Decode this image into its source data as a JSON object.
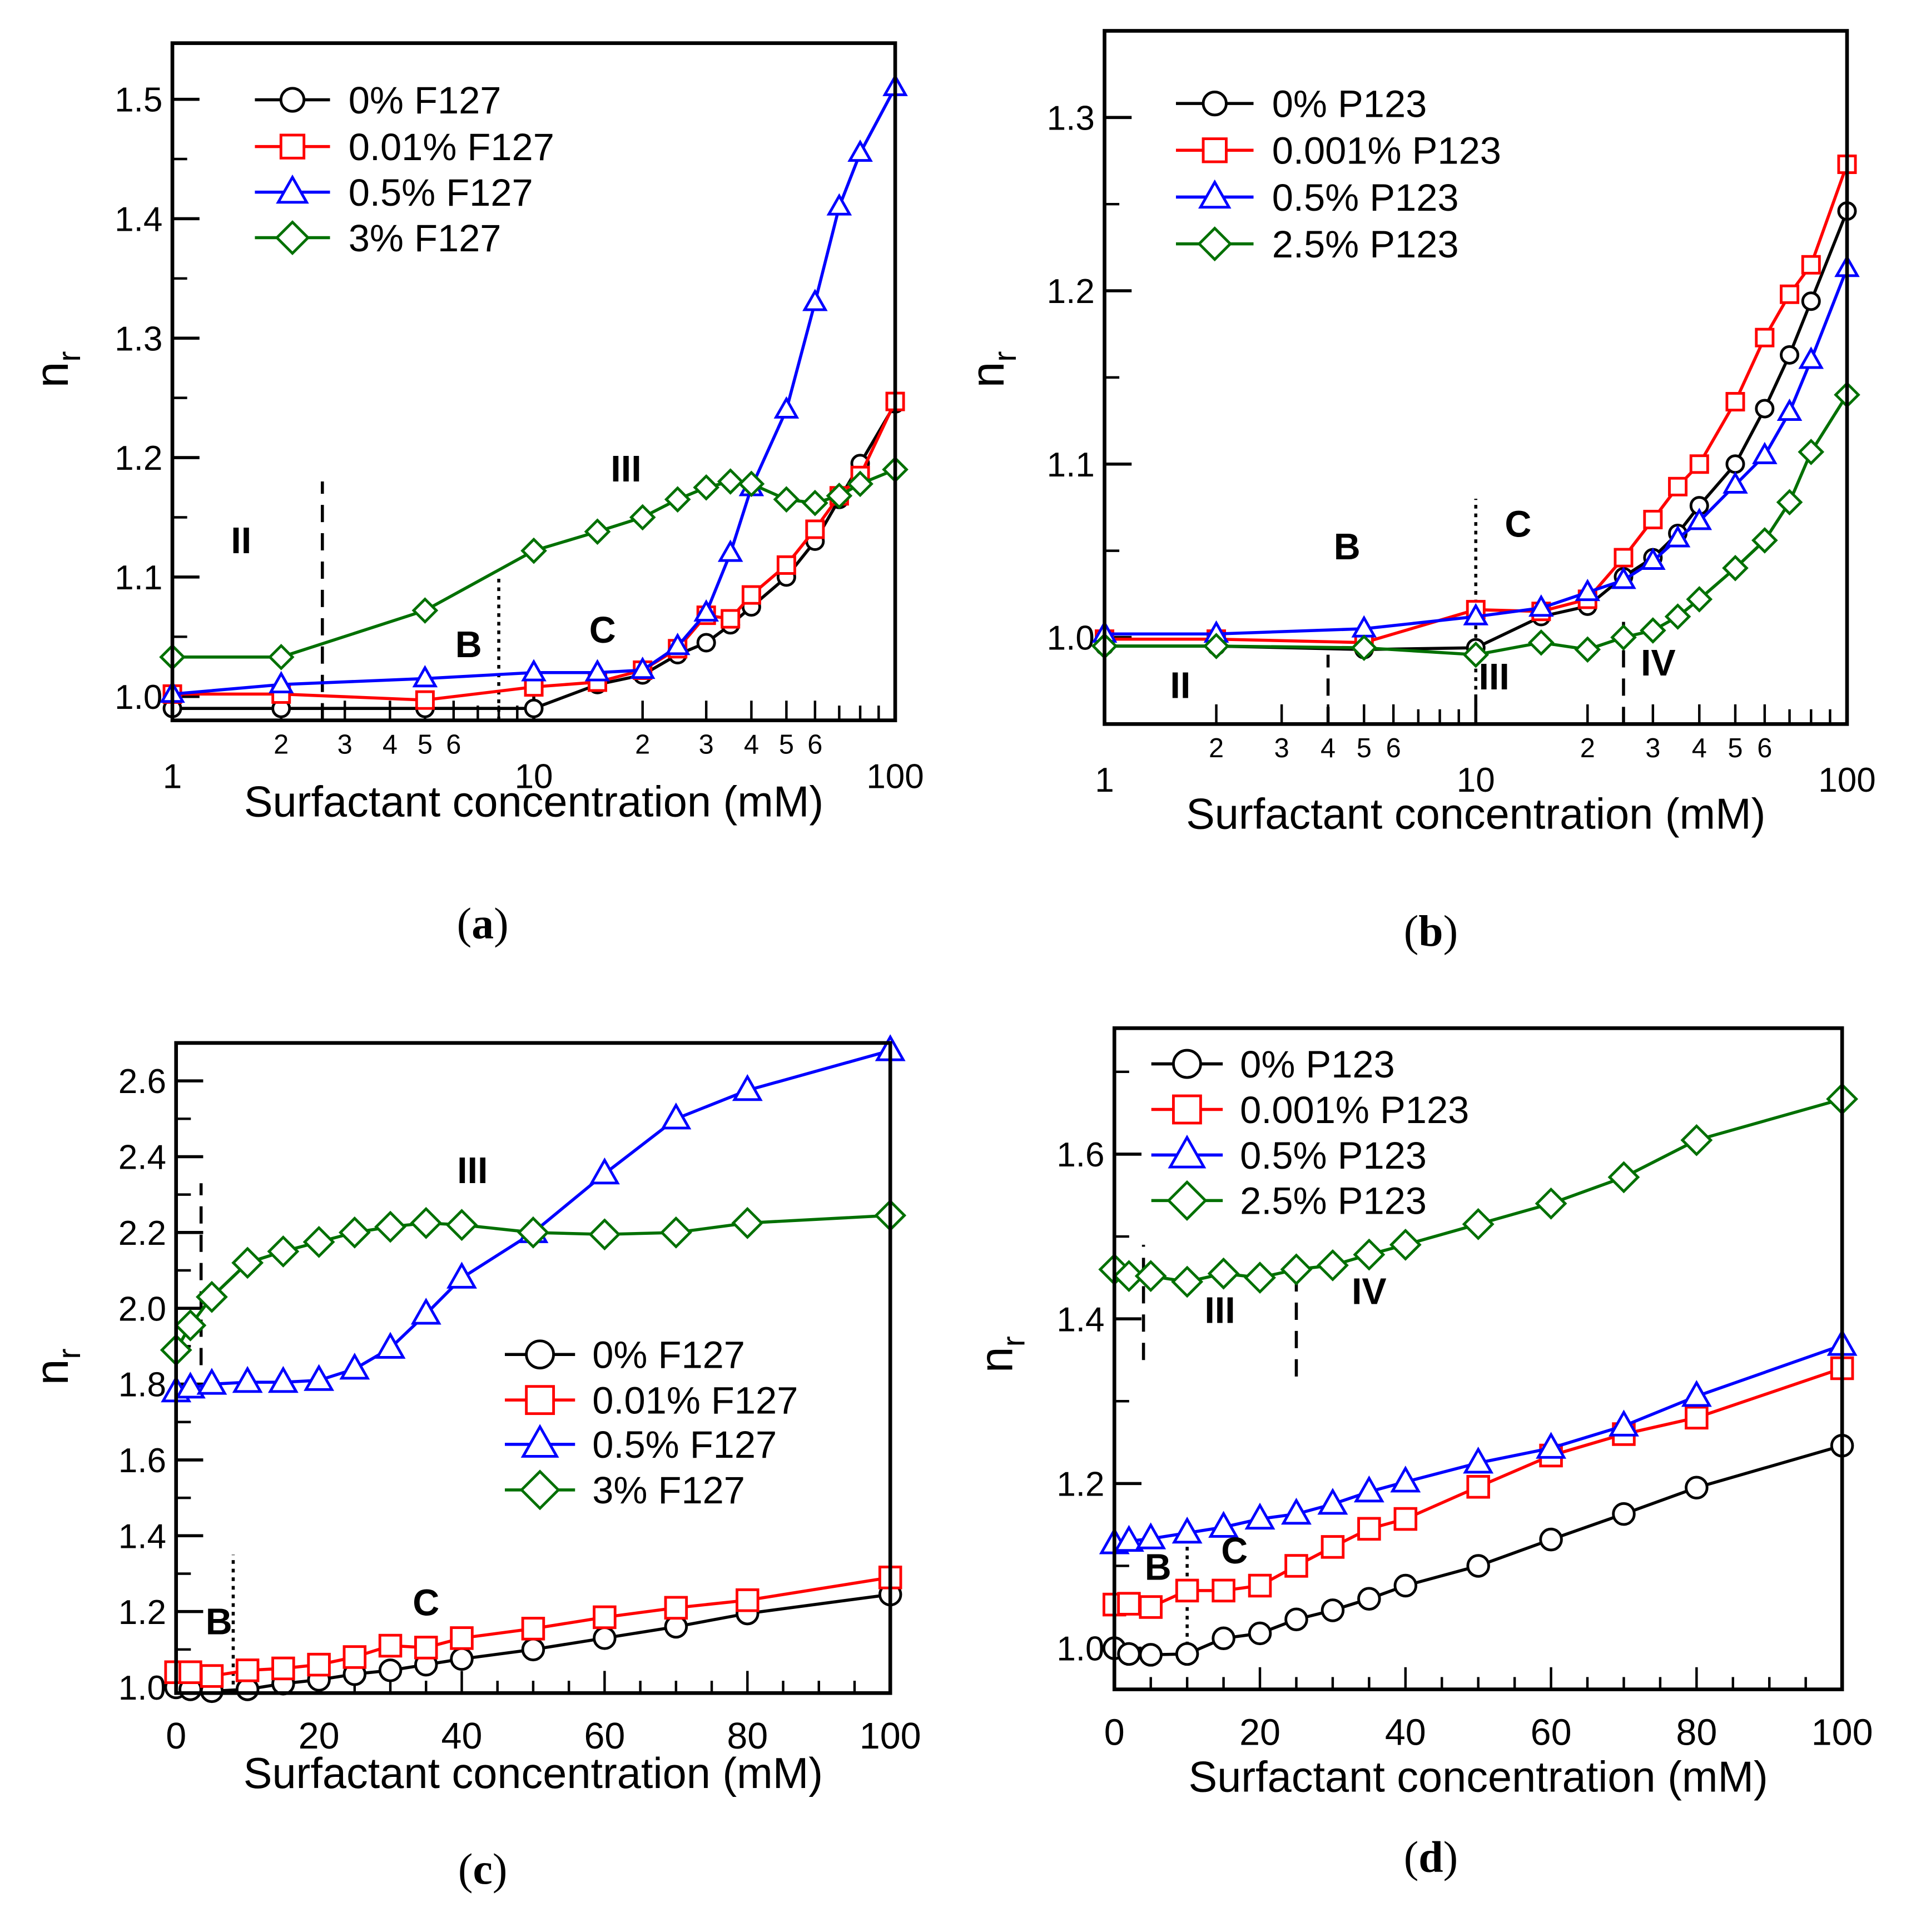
{
  "chart_data": [
    {
      "type": "line",
      "panel_label": "a",
      "caption": [
        "(",
        "a",
        ")"
      ],
      "xscale": "log",
      "xlim": [
        1,
        100
      ],
      "ylim": [
        0.98,
        1.547
      ],
      "xlabel": "Surfactant concentration (mM)",
      "ylabel": "n",
      "ylabel_sub": "r",
      "yticks": [
        "1.0",
        "1.1",
        "1.2",
        "1.3",
        "1.4",
        "1.5"
      ],
      "xticks_major": [
        "1",
        "10",
        "100"
      ],
      "xticks_minor_labels": [
        "2",
        "3",
        "4",
        "5",
        "6",
        "2",
        "3",
        "4",
        "5",
        "6"
      ],
      "x": [
        1,
        2,
        5,
        10,
        15,
        20,
        25,
        30,
        35,
        40,
        50,
        60,
        70,
        80,
        100
      ],
      "series": [
        {
          "name": "0% F127",
          "color": "#000000",
          "marker": "circle",
          "values": [
            0.99,
            0.99,
            0.99,
            0.99,
            1.01,
            1.018,
            1.035,
            1.045,
            1.06,
            1.075,
            1.1,
            1.13,
            1.165,
            1.195,
            1.245
          ]
        },
        {
          "name": "0.01% F127",
          "color": "#ff0000",
          "marker": "square",
          "values": [
            1.002,
            1.002,
            0.997,
            1.008,
            1.012,
            1.022,
            1.04,
            1.068,
            1.065,
            1.085,
            1.11,
            1.14,
            1.168,
            1.185,
            1.247
          ]
        },
        {
          "name": "0.5% F127",
          "color": "#0000ff",
          "marker": "triangle",
          "values": [
            1.002,
            1.01,
            1.015,
            1.02,
            1.02,
            1.022,
            1.042,
            1.07,
            1.12,
            1.175,
            1.24,
            1.33,
            1.41,
            1.455,
            1.51
          ]
        },
        {
          "name": "3% F127",
          "color": "#007000",
          "marker": "diamond",
          "values": [
            1.033,
            1.033,
            1.072,
            1.122,
            1.138,
            1.15,
            1.165,
            1.175,
            1.18,
            1.178,
            1.165,
            1.162,
            1.168,
            1.178,
            1.19
          ]
        }
      ],
      "annotations": [
        {
          "text": "II",
          "x": 1.55,
          "y": 1.12
        },
        {
          "text": "III",
          "x": 18,
          "y": 1.18
        },
        {
          "text": "B",
          "x": 6.6,
          "y": 1.033
        },
        {
          "text": "C",
          "x": 15.5,
          "y": 1.045
        }
      ],
      "vlines": [
        {
          "x": 2.6,
          "y": [
            0.98,
            1.18
          ],
          "style": "dashed"
        },
        {
          "x": 8,
          "y": [
            0.98,
            1.1
          ],
          "style": "dotted"
        }
      ]
    },
    {
      "type": "line",
      "panel_label": "b",
      "caption": [
        "(",
        "b",
        ")"
      ],
      "xscale": "log",
      "xlim": [
        1,
        100
      ],
      "ylim": [
        0.95,
        1.35
      ],
      "xlabel": "Surfactant concentration (mM)",
      "ylabel": "n",
      "ylabel_sub": "r",
      "yticks": [
        "1.0",
        "1.1",
        "1.2",
        "1.3"
      ],
      "xticks_major": [
        "1",
        "10",
        "100"
      ],
      "xticks_minor_labels": [
        "2",
        "3",
        "4",
        "5",
        "6",
        "2",
        "3",
        "4",
        "5",
        "6"
      ],
      "x": [
        1,
        2,
        5,
        10,
        15,
        20,
        25,
        30,
        35,
        40,
        50,
        60,
        70,
        80,
        100
      ],
      "series": [
        {
          "name": "0% P123",
          "color": "#000000",
          "marker": "circle",
          "values": [
            0.995,
            0.995,
            0.993,
            0.994,
            1.012,
            1.018,
            1.035,
            1.046,
            1.06,
            1.076,
            1.1,
            1.132,
            1.163,
            1.194,
            1.246
          ]
        },
        {
          "name": "0.001% P123",
          "color": "#ff0000",
          "marker": "square",
          "values": [
            0.999,
            0.999,
            0.997,
            1.016,
            1.015,
            1.022,
            1.046,
            1.068,
            1.087,
            1.1,
            1.136,
            1.173,
            1.198,
            1.215,
            1.273
          ]
        },
        {
          "name": "0.5% P123",
          "color": "#0000ff",
          "marker": "triangle",
          "values": [
            1.002,
            1.002,
            1.005,
            1.012,
            1.017,
            1.026,
            1.033,
            1.044,
            1.057,
            1.067,
            1.088,
            1.105,
            1.13,
            1.16,
            1.213
          ]
        },
        {
          "name": "2.5% P123",
          "color": "#007000",
          "marker": "diamond",
          "values": [
            0.995,
            0.995,
            0.994,
            0.99,
            0.997,
            0.993,
            1.0,
            1.004,
            1.012,
            1.022,
            1.04,
            1.056,
            1.078,
            1.107,
            1.14
          ]
        }
      ],
      "annotations": [
        {
          "text": "B",
          "x": 4.5,
          "y": 1.045
        },
        {
          "text": "C",
          "x": 13,
          "y": 1.058
        },
        {
          "text": "II",
          "x": 1.6,
          "y": 0.965
        },
        {
          "text": "III",
          "x": 11.2,
          "y": 0.97
        },
        {
          "text": "IV",
          "x": 31,
          "y": 0.978
        }
      ],
      "vlines": [
        {
          "x": 4,
          "y": [
            0.95,
            0.99
          ],
          "style": "dashed"
        },
        {
          "x": 25,
          "y": [
            0.95,
            1.01
          ],
          "style": "dashed"
        },
        {
          "x": 10,
          "y": [
            0.95,
            1.08
          ],
          "style": "dotted"
        }
      ]
    },
    {
      "type": "line",
      "panel_label": "c",
      "caption": [
        "(",
        "c",
        ")"
      ],
      "xscale": "linear",
      "xlim": [
        0,
        100
      ],
      "ylim": [
        0.985,
        2.7
      ],
      "xlabel": "Surfactant concentration (mM)",
      "ylabel": "n",
      "ylabel_sub": "r",
      "yticks": [
        "1.0",
        "1.2",
        "1.4",
        "1.6",
        "1.8",
        "2.0",
        "2.2",
        "2.4",
        "2.6"
      ],
      "xticks": [
        "0",
        "20",
        "40",
        "60",
        "80",
        "100"
      ],
      "x": [
        0,
        2,
        5,
        10,
        15,
        20,
        25,
        30,
        35,
        40,
        50,
        60,
        70,
        80,
        100
      ],
      "series": [
        {
          "name": "0% F127",
          "color": "#000000",
          "marker": "circle",
          "values": [
            1.0,
            0.995,
            0.99,
            0.995,
            1.01,
            1.02,
            1.035,
            1.045,
            1.06,
            1.075,
            1.1,
            1.13,
            1.16,
            1.195,
            1.245
          ]
        },
        {
          "name": "0.01% F127",
          "color": "#ff0000",
          "marker": "square",
          "values": [
            1.04,
            1.04,
            1.03,
            1.045,
            1.05,
            1.06,
            1.08,
            1.11,
            1.105,
            1.13,
            1.155,
            1.185,
            1.21,
            1.23,
            1.29
          ]
        },
        {
          "name": "0.5% F127",
          "color": "#0000ff",
          "marker": "triangle",
          "values": [
            1.78,
            1.79,
            1.8,
            1.805,
            1.805,
            1.81,
            1.84,
            1.895,
            1.985,
            2.08,
            2.2,
            2.355,
            2.5,
            2.575,
            2.68
          ]
        },
        {
          "name": "3% F127",
          "color": "#007000",
          "marker": "diamond",
          "values": [
            1.89,
            1.955,
            2.03,
            2.12,
            2.15,
            2.175,
            2.2,
            2.215,
            2.225,
            2.22,
            2.2,
            2.195,
            2.2,
            2.225,
            2.245
          ]
        }
      ],
      "annotations": [
        {
          "text": "III",
          "x": 41.5,
          "y": 2.33
        },
        {
          "text": "B",
          "x": 6,
          "y": 1.14
        },
        {
          "text": "C",
          "x": 35,
          "y": 1.19
        }
      ],
      "vlines": [
        {
          "x": 3.5,
          "y": [
            1.85,
            2.33
          ],
          "style": "dashed"
        },
        {
          "x": 8,
          "y": [
            0.985,
            1.35
          ],
          "style": "dotted"
        }
      ]
    },
    {
      "type": "line",
      "panel_label": "d",
      "caption": [
        "(",
        "d",
        ")"
      ],
      "xscale": "linear",
      "xlim": [
        0,
        100
      ],
      "ylim": [
        0.95,
        1.753
      ],
      "xlabel": "Surfactant concentration (mM)",
      "ylabel": "n",
      "ylabel_sub": "r",
      "yticks": [
        "1.0",
        "1.2",
        "1.4",
        "1.6"
      ],
      "xticks": [
        "0",
        "20",
        "40",
        "60",
        "80",
        "100"
      ],
      "x": [
        0,
        2,
        5,
        10,
        15,
        20,
        25,
        30,
        35,
        40,
        50,
        60,
        70,
        80,
        100
      ],
      "series": [
        {
          "name": "0% P123",
          "color": "#000000",
          "marker": "circle",
          "values": [
            1.0,
            0.993,
            0.992,
            0.993,
            1.012,
            1.018,
            1.035,
            1.046,
            1.06,
            1.076,
            1.1,
            1.132,
            1.163,
            1.195,
            1.246
          ]
        },
        {
          "name": "0.001% P123",
          "color": "#ff0000",
          "marker": "square",
          "values": [
            1.053,
            1.054,
            1.05,
            1.07,
            1.07,
            1.076,
            1.1,
            1.123,
            1.145,
            1.157,
            1.196,
            1.234,
            1.26,
            1.28,
            1.34
          ]
        },
        {
          "name": "0.5% P123",
          "color": "#0000ff",
          "marker": "triangle",
          "values": [
            1.127,
            1.13,
            1.133,
            1.14,
            1.147,
            1.157,
            1.163,
            1.175,
            1.19,
            1.202,
            1.225,
            1.243,
            1.27,
            1.306,
            1.368
          ]
        },
        {
          "name": "2.5% P123",
          "color": "#007000",
          "marker": "diamond",
          "values": [
            1.46,
            1.452,
            1.452,
            1.445,
            1.455,
            1.45,
            1.46,
            1.465,
            1.478,
            1.49,
            1.515,
            1.54,
            1.572,
            1.617,
            1.667
          ]
        }
      ],
      "annotations": [
        {
          "text": "III",
          "x": 14.5,
          "y": 1.395
        },
        {
          "text": "IV",
          "x": 35,
          "y": 1.418
        },
        {
          "text": "B",
          "x": 6,
          "y": 1.083
        },
        {
          "text": "C",
          "x": 16.5,
          "y": 1.103
        }
      ],
      "vlines": [
        {
          "x": 4,
          "y": [
            1.35,
            1.49
          ],
          "style": "dashed"
        },
        {
          "x": 25,
          "y": [
            1.33,
            1.47
          ],
          "style": "dashed"
        },
        {
          "x": 10,
          "y": [
            0.993,
            1.13
          ],
          "style": "dotted"
        }
      ]
    }
  ]
}
